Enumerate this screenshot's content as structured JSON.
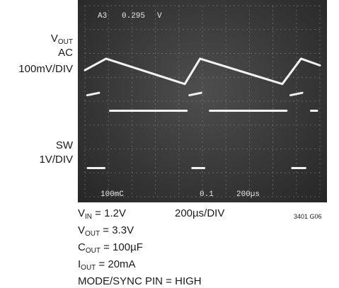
{
  "labels": {
    "vout_main": "V",
    "vout_sub": "OUT",
    "vout_ac": "AC",
    "vout_scale": "100mV/DIV",
    "sw_name": "SW",
    "sw_scale": "1V/DIV"
  },
  "screen_text": {
    "channel_readout": "A3",
    "trigger_level": "0.295",
    "trigger_unit": "V",
    "ch1_scale": "100mC",
    "ch2_scale": "0.1",
    "time_scale": "200µs"
  },
  "conditions": [
    {
      "main": "V",
      "sub": "IN",
      "rest": " = 1.2V"
    },
    {
      "main": "V",
      "sub": "OUT",
      "rest": " = 3.3V"
    },
    {
      "main": "C",
      "sub": "OUT",
      "rest": " = 100µF"
    },
    {
      "main": "I",
      "sub": "OUT",
      "rest": " = 20mA"
    },
    {
      "main": "MODE/SYNC PIN = HIGH",
      "sub": "",
      "rest": ""
    }
  ],
  "timebase": "200µs/DIV",
  "figure_id": "3401 G06",
  "chart_data": {
    "type": "line",
    "x_unit": "divisions",
    "x_range": [
      0,
      10
    ],
    "grid": true,
    "grid_divisions": {
      "x": 10,
      "y": 8
    },
    "series": [
      {
        "name": "VOUT",
        "x": [
          0.0,
          0.9,
          4.25,
          4.9,
          8.4,
          9.2,
          10.0
        ],
        "y": [
          5.3,
          5.78,
          4.72,
          5.78,
          4.72,
          5.78,
          5.5
        ],
        "y_unit": "divisions",
        "color": "#f2f2f2"
      },
      {
        "name": "SW",
        "x": [
          0.0,
          0.95,
          0.95,
          4.45,
          4.45,
          5.2,
          5.2,
          8.7,
          8.7,
          9.5,
          9.5,
          10.0
        ],
        "y": [
          1.2,
          1.2,
          3.6,
          3.6,
          1.2,
          1.2,
          3.6,
          3.6,
          1.2,
          1.2,
          3.6,
          3.6
        ],
        "y_unit": "divisions",
        "color": "#f2f2f2"
      }
    ],
    "colors": {
      "screen": "#383838",
      "grid": "#8a8a8a",
      "trace": "#f2f2f2"
    }
  }
}
